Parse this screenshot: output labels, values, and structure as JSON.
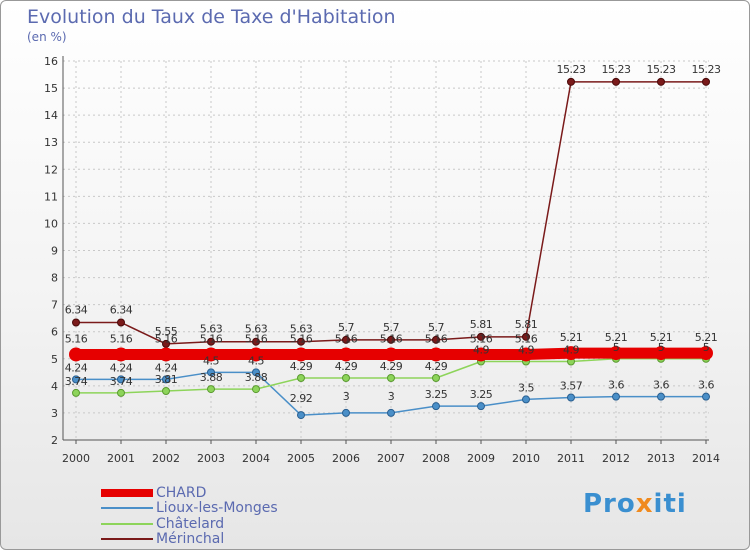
{
  "header": {
    "title": "Evolution du Taux de Taxe d'Habitation",
    "subtitle": "(en %)"
  },
  "logo": {
    "text_a": "Pro",
    "text_b": "x",
    "text_c": "iti"
  },
  "chart_data": {
    "type": "line",
    "title": "Evolution du Taux de Taxe d'Habitation",
    "subtitle": "(en %)",
    "xlabel": "",
    "ylabel": "",
    "x": [
      2000,
      2001,
      2002,
      2003,
      2004,
      2005,
      2006,
      2007,
      2008,
      2009,
      2010,
      2011,
      2012,
      2013,
      2014
    ],
    "ylim": [
      2,
      16
    ],
    "yticks": [
      2,
      3,
      4,
      5,
      6,
      7,
      8,
      9,
      10,
      11,
      12,
      13,
      14,
      15,
      16
    ],
    "grid": true,
    "legend_position": "bottom-left",
    "series": [
      {
        "name": "CHARD",
        "color": "#e60000",
        "values": [
          5.16,
          5.16,
          5.16,
          5.16,
          5.16,
          5.16,
          5.16,
          5.16,
          5.16,
          5.16,
          5.16,
          5.21,
          5.21,
          5.21,
          5.21
        ],
        "labels": [
          "5.16",
          "5.16",
          "5.16",
          "5.16",
          "5.16",
          "5.16",
          "5.16",
          "5.16",
          "5.16",
          "5.16",
          "5.16",
          "5.21",
          "5.21",
          "5.21",
          "5.21"
        ]
      },
      {
        "name": "Lioux-les-Monges",
        "color": "#4a8fc8",
        "values": [
          4.24,
          4.24,
          4.24,
          4.5,
          4.5,
          2.92,
          3,
          3,
          3.25,
          3.25,
          3.5,
          3.57,
          3.6,
          3.6,
          3.6
        ],
        "labels": [
          "4.24",
          "4.24",
          "4.24",
          "4.5",
          "4.5",
          "2.92",
          "3",
          "3",
          "3.25",
          "3.25",
          "3.5",
          "3.57",
          "3.6",
          "3.6",
          "3.6"
        ]
      },
      {
        "name": "Châtelard",
        "color": "#8dd45a",
        "values": [
          3.74,
          3.74,
          3.81,
          3.88,
          3.88,
          4.29,
          4.29,
          4.29,
          4.29,
          4.9,
          4.9,
          4.9,
          5,
          5,
          5
        ],
        "labels": [
          "3.74",
          "3.74",
          "3.81",
          "3.88",
          "3.88",
          "4.29",
          "4.29",
          "4.29",
          "4.29",
          "4.9",
          "4.9",
          "4.9",
          "5",
          "5",
          "5"
        ]
      },
      {
        "name": "Mérinchal",
        "color": "#7a1a1a",
        "values": [
          6.34,
          6.34,
          5.55,
          5.63,
          5.63,
          5.63,
          5.7,
          5.7,
          5.7,
          5.81,
          5.81,
          15.23,
          15.23,
          15.23,
          15.23
        ],
        "labels": [
          "6.34",
          "6.34",
          "5.55",
          "5.63",
          "5.63",
          "5.63",
          "5.7",
          "5.7",
          "5.7",
          "5.81",
          "5.81",
          "15.23",
          "15.23",
          "15.23",
          "15.23"
        ]
      }
    ]
  }
}
